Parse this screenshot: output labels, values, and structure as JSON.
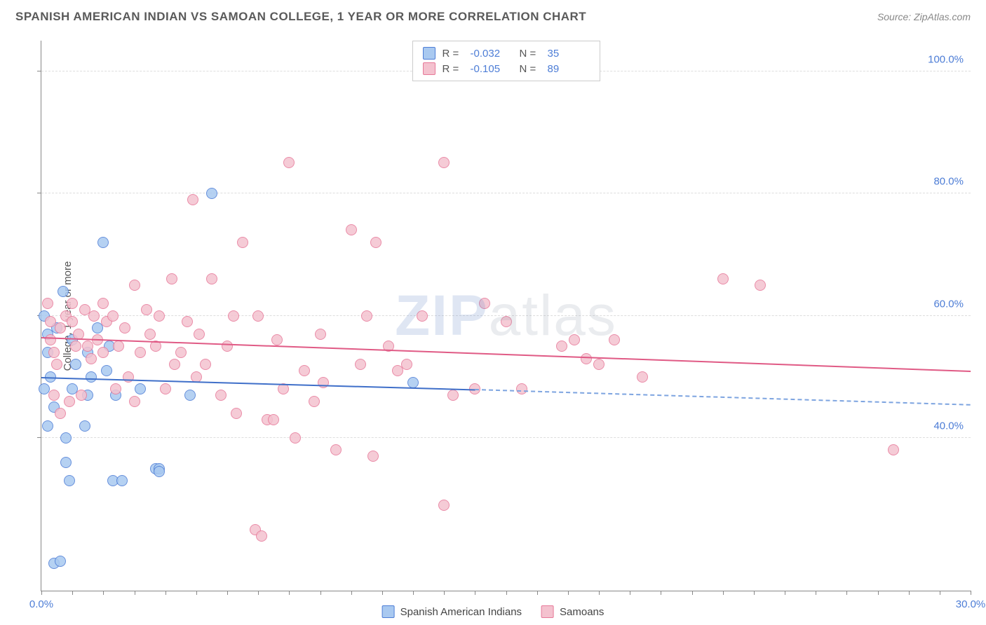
{
  "title": "SPANISH AMERICAN INDIAN VS SAMOAN COLLEGE, 1 YEAR OR MORE CORRELATION CHART",
  "source": "Source: ZipAtlas.com",
  "ylabel": "College, 1 year or more",
  "watermark_part1": "ZIP",
  "watermark_part2": "atlas",
  "chart": {
    "type": "scatter",
    "xlim": [
      0,
      30
    ],
    "ylim": [
      15,
      105
    ],
    "background_color": "#ffffff",
    "grid_color": "#dddddd",
    "axis_color": "#888888",
    "tick_color": "#4d7dd6",
    "tick_fontsize": 15,
    "label_fontsize": 15,
    "yticks": [
      40,
      60,
      80,
      100
    ],
    "ytick_labels": [
      "40.0%",
      "60.0%",
      "80.0%",
      "100.0%"
    ],
    "xticks_minor": [
      0,
      1,
      2,
      3,
      4,
      5,
      6,
      7,
      8,
      9,
      10,
      11,
      12,
      13,
      14,
      15,
      16,
      17,
      18,
      19,
      20,
      21,
      22,
      23,
      24,
      25,
      26,
      27,
      28,
      29,
      30
    ],
    "xtick_labels": [
      {
        "x": 0,
        "label": "0.0%"
      },
      {
        "x": 30,
        "label": "30.0%"
      }
    ],
    "point_radius": 8,
    "point_border_width": 1.2,
    "point_fill_opacity": 0.35,
    "series": [
      {
        "id": "spanish_american_indians",
        "label": "Spanish American Indians",
        "color_fill": "#a9c9f0",
        "color_stroke": "#4d7dd6",
        "r_value": "-0.032",
        "n_value": "35",
        "trend": {
          "x1": 0,
          "y1": 50,
          "x2": 14,
          "y2": 48,
          "extrap_x2": 30,
          "extrap_y2": 45.5,
          "color": "#3f6fc9",
          "dash_color": "#7da4e0"
        },
        "points": [
          {
            "x": 0.1,
            "y": 60
          },
          {
            "x": 0.2,
            "y": 57
          },
          {
            "x": 0.2,
            "y": 54
          },
          {
            "x": 0.3,
            "y": 50
          },
          {
            "x": 0.1,
            "y": 48
          },
          {
            "x": 0.4,
            "y": 45
          },
          {
            "x": 0.2,
            "y": 42
          },
          {
            "x": 0.7,
            "y": 64
          },
          {
            "x": 1.0,
            "y": 56
          },
          {
            "x": 1.1,
            "y": 52
          },
          {
            "x": 1.0,
            "y": 48
          },
          {
            "x": 0.8,
            "y": 40
          },
          {
            "x": 0.8,
            "y": 36
          },
          {
            "x": 1.5,
            "y": 54
          },
          {
            "x": 1.6,
            "y": 50
          },
          {
            "x": 1.5,
            "y": 47
          },
          {
            "x": 1.4,
            "y": 42
          },
          {
            "x": 2.0,
            "y": 72
          },
          {
            "x": 2.2,
            "y": 55
          },
          {
            "x": 2.1,
            "y": 51
          },
          {
            "x": 2.4,
            "y": 47
          },
          {
            "x": 2.3,
            "y": 33
          },
          {
            "x": 3.2,
            "y": 48
          },
          {
            "x": 3.7,
            "y": 35
          },
          {
            "x": 3.8,
            "y": 35
          },
          {
            "x": 3.8,
            "y": 34.5
          },
          {
            "x": 4.8,
            "y": 47
          },
          {
            "x": 5.5,
            "y": 80
          },
          {
            "x": 12.0,
            "y": 49
          },
          {
            "x": 0.4,
            "y": 19.5
          },
          {
            "x": 0.6,
            "y": 19.8
          },
          {
            "x": 0.5,
            "y": 58
          },
          {
            "x": 1.8,
            "y": 58
          },
          {
            "x": 2.6,
            "y": 33
          },
          {
            "x": 0.9,
            "y": 33
          }
        ]
      },
      {
        "id": "samoans",
        "label": "Samoans",
        "color_fill": "#f4c2cf",
        "color_stroke": "#e77999",
        "r_value": "-0.105",
        "n_value": "89",
        "trend": {
          "x1": 0,
          "y1": 56.5,
          "x2": 30,
          "y2": 51,
          "color": "#e05a85"
        },
        "points": [
          {
            "x": 0.2,
            "y": 62
          },
          {
            "x": 0.3,
            "y": 59
          },
          {
            "x": 0.3,
            "y": 56
          },
          {
            "x": 0.4,
            "y": 54
          },
          {
            "x": 0.5,
            "y": 52
          },
          {
            "x": 0.6,
            "y": 58
          },
          {
            "x": 0.8,
            "y": 60
          },
          {
            "x": 1.0,
            "y": 59
          },
          {
            "x": 1.1,
            "y": 55
          },
          {
            "x": 1.2,
            "y": 57
          },
          {
            "x": 1.4,
            "y": 61
          },
          {
            "x": 1.5,
            "y": 55
          },
          {
            "x": 1.6,
            "y": 53
          },
          {
            "x": 1.8,
            "y": 56
          },
          {
            "x": 2.0,
            "y": 54
          },
          {
            "x": 2.1,
            "y": 59
          },
          {
            "x": 2.3,
            "y": 60
          },
          {
            "x": 2.4,
            "y": 48
          },
          {
            "x": 2.7,
            "y": 58
          },
          {
            "x": 2.8,
            "y": 50
          },
          {
            "x": 3.0,
            "y": 65
          },
          {
            "x": 3.2,
            "y": 54
          },
          {
            "x": 3.4,
            "y": 61
          },
          {
            "x": 3.5,
            "y": 57
          },
          {
            "x": 3.7,
            "y": 55
          },
          {
            "x": 4.0,
            "y": 48
          },
          {
            "x": 4.2,
            "y": 66
          },
          {
            "x": 4.5,
            "y": 54
          },
          {
            "x": 4.7,
            "y": 59
          },
          {
            "x": 4.9,
            "y": 79
          },
          {
            "x": 5.1,
            "y": 57
          },
          {
            "x": 5.3,
            "y": 52
          },
          {
            "x": 5.5,
            "y": 66
          },
          {
            "x": 5.8,
            "y": 47
          },
          {
            "x": 6.0,
            "y": 55
          },
          {
            "x": 6.2,
            "y": 60
          },
          {
            "x": 6.5,
            "y": 72
          },
          {
            "x": 6.9,
            "y": 25
          },
          {
            "x": 7.1,
            "y": 24
          },
          {
            "x": 7.3,
            "y": 43
          },
          {
            "x": 7.6,
            "y": 56
          },
          {
            "x": 7.8,
            "y": 48
          },
          {
            "x": 8.0,
            "y": 85
          },
          {
            "x": 8.2,
            "y": 40
          },
          {
            "x": 8.5,
            "y": 51
          },
          {
            "x": 8.8,
            "y": 46
          },
          {
            "x": 9.1,
            "y": 49
          },
          {
            "x": 9.5,
            "y": 38
          },
          {
            "x": 10.0,
            "y": 74
          },
          {
            "x": 10.3,
            "y": 52
          },
          {
            "x": 10.5,
            "y": 60
          },
          {
            "x": 10.7,
            "y": 37
          },
          {
            "x": 10.8,
            "y": 72
          },
          {
            "x": 11.2,
            "y": 55
          },
          {
            "x": 11.5,
            "y": 51
          },
          {
            "x": 12.3,
            "y": 60
          },
          {
            "x": 13.0,
            "y": 85
          },
          {
            "x": 13.0,
            "y": 29
          },
          {
            "x": 13.3,
            "y": 47
          },
          {
            "x": 14.0,
            "y": 48
          },
          {
            "x": 14.3,
            "y": 62
          },
          {
            "x": 15.0,
            "y": 59
          },
          {
            "x": 15.5,
            "y": 48
          },
          {
            "x": 16.8,
            "y": 55
          },
          {
            "x": 17.2,
            "y": 56
          },
          {
            "x": 18.0,
            "y": 52
          },
          {
            "x": 18.5,
            "y": 56
          },
          {
            "x": 19.4,
            "y": 50
          },
          {
            "x": 22.0,
            "y": 66
          },
          {
            "x": 23.2,
            "y": 65
          },
          {
            "x": 27.5,
            "y": 38
          },
          {
            "x": 0.4,
            "y": 47
          },
          {
            "x": 0.6,
            "y": 44
          },
          {
            "x": 0.9,
            "y": 46
          },
          {
            "x": 1.0,
            "y": 62
          },
          {
            "x": 1.3,
            "y": 47
          },
          {
            "x": 1.7,
            "y": 60
          },
          {
            "x": 2.0,
            "y": 62
          },
          {
            "x": 2.5,
            "y": 55
          },
          {
            "x": 3.0,
            "y": 46
          },
          {
            "x": 3.8,
            "y": 60
          },
          {
            "x": 4.3,
            "y": 52
          },
          {
            "x": 5.0,
            "y": 50
          },
          {
            "x": 6.3,
            "y": 44
          },
          {
            "x": 7.0,
            "y": 60
          },
          {
            "x": 7.5,
            "y": 43
          },
          {
            "x": 9.0,
            "y": 57
          },
          {
            "x": 11.8,
            "y": 52
          },
          {
            "x": 17.6,
            "y": 53
          }
        ]
      }
    ]
  },
  "legend_bottom": [
    {
      "label": "Spanish American Indians",
      "fill": "#a9c9f0",
      "stroke": "#4d7dd6"
    },
    {
      "label": "Samoans",
      "fill": "#f4c2cf",
      "stroke": "#e77999"
    }
  ]
}
